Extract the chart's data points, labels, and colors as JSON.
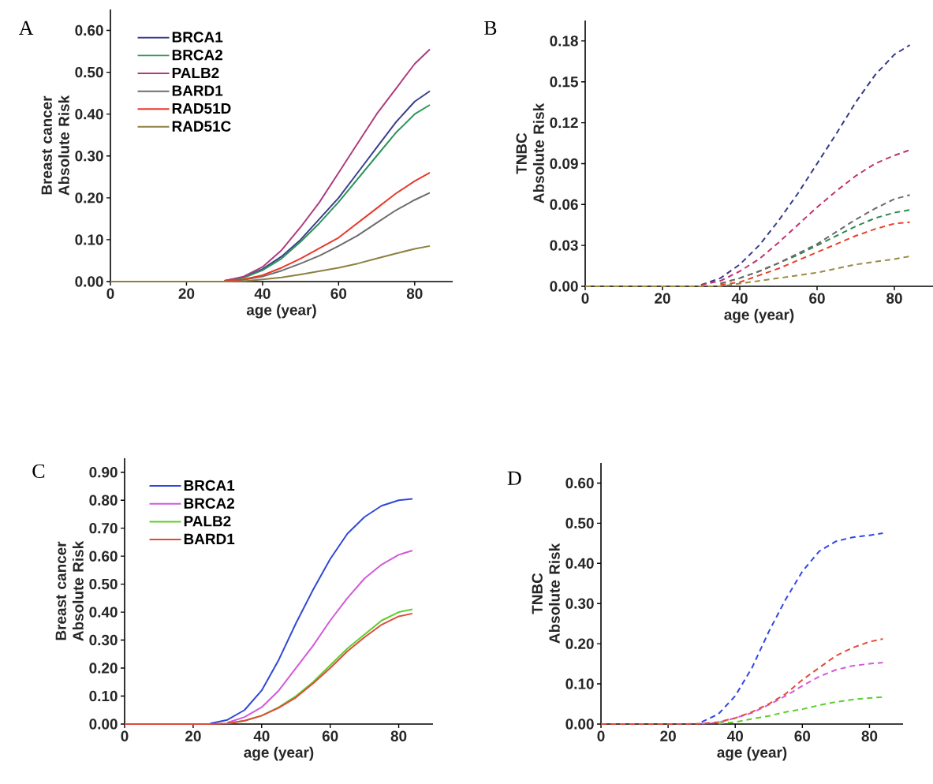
{
  "chart_data": [
    {
      "type": "line",
      "title": "A",
      "xlabel": "age (year)",
      "ylabel": "Breast cancer Absolute Risk",
      "line_style": "solid",
      "legend": "top left",
      "x": [
        0,
        20,
        25,
        30,
        35,
        40,
        45,
        50,
        55,
        60,
        65,
        70,
        75,
        80,
        84
      ],
      "xlim": [
        0,
        90
      ],
      "ylim": [
        0,
        0.65
      ],
      "xticks": [
        0,
        20,
        40,
        60,
        80
      ],
      "yticks": [
        {
          "value": 0,
          "label": "0.00"
        },
        {
          "value": 0.1,
          "label": "0.10"
        },
        {
          "value": 0.2,
          "label": "0.20"
        },
        {
          "value": 0.3,
          "label": "0.30"
        },
        {
          "value": 0.4,
          "label": "0.40"
        },
        {
          "value": 0.5,
          "label": "0.50"
        },
        {
          "value": 0.6,
          "label": "0.60"
        }
      ],
      "series": [
        {
          "name": "BRCA1",
          "color": "#3b3f8c",
          "values": [
            null,
            null,
            null,
            0.002,
            0.01,
            0.03,
            0.06,
            0.1,
            0.15,
            0.2,
            0.26,
            0.32,
            0.38,
            0.43,
            0.455
          ]
        },
        {
          "name": "BRCA2",
          "color": "#2e9458",
          "values": [
            null,
            null,
            null,
            0.002,
            0.009,
            0.027,
            0.055,
            0.095,
            0.14,
            0.19,
            0.245,
            0.3,
            0.355,
            0.4,
            0.422
          ]
        },
        {
          "name": "PALB2",
          "color": "#b03a7e",
          "values": [
            null,
            null,
            null,
            0.002,
            0.012,
            0.035,
            0.075,
            0.13,
            0.19,
            0.26,
            0.33,
            0.4,
            0.46,
            0.52,
            0.555
          ]
        },
        {
          "name": "BARD1",
          "color": "#6d6d6d",
          "values": [
            null,
            null,
            null,
            0.001,
            0.004,
            0.012,
            0.026,
            0.043,
            0.062,
            0.085,
            0.11,
            0.14,
            0.17,
            0.195,
            0.212
          ]
        },
        {
          "name": "RAD51D",
          "color": "#e8392a",
          "values": [
            null,
            null,
            null,
            0.001,
            0.005,
            0.015,
            0.033,
            0.055,
            0.08,
            0.105,
            0.14,
            0.175,
            0.21,
            0.24,
            0.26
          ]
        },
        {
          "name": "RAD51C",
          "color": "#8c8040",
          "values": [
            0,
            0,
            0,
            0,
            0.001,
            0.005,
            0.01,
            0.017,
            0.025,
            0.033,
            0.043,
            0.055,
            0.067,
            0.078,
            0.085
          ]
        }
      ]
    },
    {
      "type": "line",
      "title": "B",
      "xlabel": "age (year)",
      "ylabel": "TNBC Absolute Risk",
      "line_style": "dashed",
      "x": [
        0,
        20,
        25,
        30,
        35,
        40,
        45,
        50,
        55,
        60,
        65,
        70,
        75,
        80,
        84
      ],
      "xlim": [
        0,
        90
      ],
      "ylim": [
        0,
        0.195
      ],
      "xticks": [
        0,
        20,
        40,
        60,
        80
      ],
      "yticks": [
        {
          "value": 0,
          "label": "0.00"
        },
        {
          "value": 0.03,
          "label": "0.03"
        },
        {
          "value": 0.06,
          "label": "0.06"
        },
        {
          "value": 0.09,
          "label": "0.09"
        },
        {
          "value": 0.12,
          "label": "0.12"
        },
        {
          "value": 0.15,
          "label": "0.15"
        },
        {
          "value": 0.18,
          "label": "0.18"
        }
      ],
      "series": [
        {
          "color": "#343a8a",
          "values": [
            null,
            null,
            null,
            0.001,
            0.006,
            0.016,
            0.03,
            0.048,
            0.068,
            0.09,
            0.112,
            0.135,
            0.155,
            0.17,
            0.177
          ]
        },
        {
          "color": "#2e8a50",
          "values": [
            null,
            null,
            null,
            null,
            0.002,
            0.006,
            0.011,
            0.017,
            0.023,
            0.03,
            0.037,
            0.044,
            0.05,
            0.054,
            0.056
          ]
        },
        {
          "color": "#c0306e",
          "values": [
            null,
            null,
            null,
            0.001,
            0.004,
            0.011,
            0.02,
            0.032,
            0.045,
            0.058,
            0.07,
            0.081,
            0.09,
            0.096,
            0.1
          ]
        },
        {
          "color": "#6a6a6a",
          "values": [
            null,
            null,
            null,
            null,
            0.002,
            0.006,
            0.011,
            0.017,
            0.024,
            0.031,
            0.04,
            0.049,
            0.057,
            0.064,
            0.067
          ]
        },
        {
          "color": "#e8402a",
          "values": [
            null,
            null,
            null,
            null,
            0.001,
            0.003,
            0.008,
            0.013,
            0.019,
            0.025,
            0.031,
            0.037,
            0.042,
            0.046,
            0.047
          ]
        },
        {
          "color": "#9a8a40",
          "values": [
            0,
            0,
            0,
            0,
            0,
            0.002,
            0.004,
            0.006,
            0.008,
            0.01,
            0.013,
            0.016,
            0.018,
            0.02,
            0.022
          ]
        }
      ]
    },
    {
      "type": "line",
      "title": "C",
      "xlabel": "age (year)",
      "ylabel": "Breast cancer Absolute Risk",
      "line_style": "solid",
      "legend": "top left",
      "x": [
        0,
        20,
        25,
        30,
        35,
        40,
        45,
        50,
        55,
        60,
        65,
        70,
        75,
        80,
        84
      ],
      "xlim": [
        0,
        90
      ],
      "ylim": [
        0,
        0.95
      ],
      "xticks": [
        0,
        20,
        40,
        60,
        80
      ],
      "yticks": [
        {
          "value": 0,
          "label": "0.00"
        },
        {
          "value": 0.1,
          "label": "0.10"
        },
        {
          "value": 0.2,
          "label": "0.20"
        },
        {
          "value": 0.3,
          "label": "0.30"
        },
        {
          "value": 0.4,
          "label": "0.40"
        },
        {
          "value": 0.5,
          "label": "0.50"
        },
        {
          "value": 0.6,
          "label": "0.60"
        },
        {
          "value": 0.7,
          "label": "0.70"
        },
        {
          "value": 0.8,
          "label": "0.80"
        },
        {
          "value": 0.9,
          "label": "0.90"
        }
      ],
      "series": [
        {
          "name": "BRCA1",
          "color": "#2f48d8",
          "values": [
            null,
            null,
            0.002,
            0.015,
            0.05,
            0.12,
            0.23,
            0.36,
            0.48,
            0.59,
            0.68,
            0.74,
            0.78,
            0.8,
            0.805
          ]
        },
        {
          "name": "BRCA2",
          "color": "#d25ad8",
          "values": [
            null,
            null,
            null,
            0.005,
            0.025,
            0.06,
            0.12,
            0.2,
            0.28,
            0.37,
            0.45,
            0.52,
            0.57,
            0.605,
            0.62
          ]
        },
        {
          "name": "PALB2",
          "color": "#5ccf2a",
          "values": [
            null,
            null,
            null,
            0.002,
            0.012,
            0.03,
            0.06,
            0.1,
            0.15,
            0.21,
            0.27,
            0.32,
            0.37,
            0.4,
            0.41
          ]
        },
        {
          "name": "BARD1",
          "color": "#e04a3a",
          "values": [
            0,
            0,
            0,
            0.002,
            0.012,
            0.03,
            0.058,
            0.095,
            0.145,
            0.2,
            0.26,
            0.31,
            0.355,
            0.385,
            0.395
          ]
        }
      ]
    },
    {
      "type": "line",
      "title": "D",
      "xlabel": "age (year)",
      "ylabel": "TNBC Absolute Risk",
      "line_style": "dashed",
      "x": [
        0,
        20,
        25,
        30,
        35,
        40,
        45,
        50,
        55,
        60,
        65,
        70,
        75,
        80,
        84
      ],
      "xlim": [
        0,
        90
      ],
      "ylim": [
        0,
        0.65
      ],
      "xticks": [
        0,
        20,
        40,
        60,
        80
      ],
      "yticks": [
        {
          "value": 0,
          "label": "0.00"
        },
        {
          "value": 0.1,
          "label": "0.10"
        },
        {
          "value": 0.2,
          "label": "0.20"
        },
        {
          "value": 0.3,
          "label": "0.30"
        },
        {
          "value": 0.4,
          "label": "0.40"
        },
        {
          "value": 0.5,
          "label": "0.50"
        },
        {
          "value": 0.6,
          "label": "0.60"
        }
      ],
      "series": [
        {
          "color": "#2f48e8",
          "values": [
            null,
            null,
            null,
            0.005,
            0.025,
            0.07,
            0.14,
            0.23,
            0.31,
            0.38,
            0.43,
            0.455,
            0.465,
            0.47,
            0.475
          ]
        },
        {
          "color": "#d25ad8",
          "values": [
            null,
            null,
            null,
            0.001,
            0.004,
            0.015,
            0.028,
            0.048,
            0.07,
            0.095,
            0.118,
            0.135,
            0.145,
            0.15,
            0.153
          ]
        },
        {
          "color": "#5ccf2a",
          "values": [
            null,
            null,
            null,
            null,
            0.001,
            0.005,
            0.013,
            0.02,
            0.03,
            0.037,
            0.047,
            0.055,
            0.061,
            0.065,
            0.067
          ]
        },
        {
          "color": "#e04a3a",
          "values": [
            0,
            0,
            0,
            0.001,
            0.005,
            0.015,
            0.03,
            0.05,
            0.075,
            0.11,
            0.14,
            0.17,
            0.19,
            0.205,
            0.212
          ]
        }
      ]
    }
  ]
}
